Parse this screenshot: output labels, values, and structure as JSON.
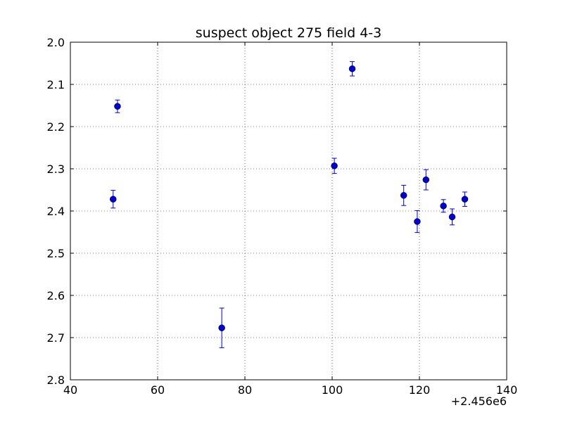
{
  "chart_data": {
    "type": "scatter",
    "title": "suspect object 275 field 4-3",
    "xlabel": "",
    "ylabel": "",
    "x_offset_label": "+2.456e6",
    "xlim": [
      40,
      140
    ],
    "ylim": [
      2.8,
      2.0
    ],
    "y_inverted": true,
    "grid": true,
    "xticks": [
      "40",
      "60",
      "80",
      "100",
      "120",
      "140"
    ],
    "yticks": [
      "2.0",
      "2.1",
      "2.2",
      "2.3",
      "2.4",
      "2.5",
      "2.6",
      "2.7",
      "2.8"
    ],
    "marker_color": "#0000cc",
    "series": [
      {
        "points": [
          {
            "x": 49.8,
            "y": 2.372,
            "err": 0.021
          },
          {
            "x": 50.8,
            "y": 2.152,
            "err": 0.015
          },
          {
            "x": 74.7,
            "y": 2.677,
            "err": 0.047
          },
          {
            "x": 100.5,
            "y": 2.293,
            "err": 0.018
          },
          {
            "x": 104.6,
            "y": 2.063,
            "err": 0.017
          },
          {
            "x": 116.4,
            "y": 2.363,
            "err": 0.024
          },
          {
            "x": 119.5,
            "y": 2.425,
            "err": 0.026
          },
          {
            "x": 121.5,
            "y": 2.326,
            "err": 0.024
          },
          {
            "x": 125.5,
            "y": 2.388,
            "err": 0.015
          },
          {
            "x": 127.5,
            "y": 2.414,
            "err": 0.019
          },
          {
            "x": 130.4,
            "y": 2.372,
            "err": 0.017
          }
        ]
      }
    ]
  }
}
